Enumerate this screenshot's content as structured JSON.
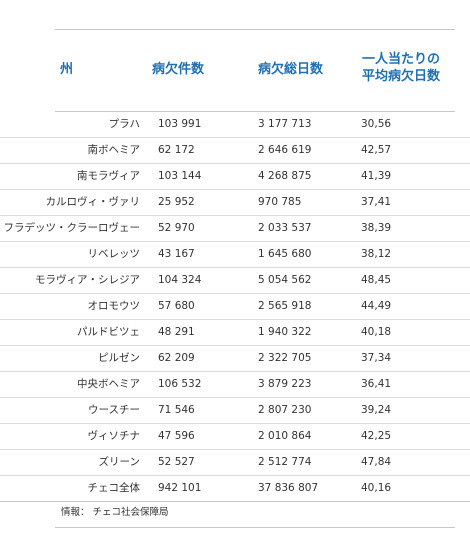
{
  "table": {
    "headers": {
      "state": "州",
      "cases": "病欠件数",
      "days": "病欠総日数",
      "avg_line1": "一人当たりの",
      "avg_line2": "平均病欠日数"
    },
    "rows": [
      {
        "state": "プラハ",
        "cases": "103 991",
        "days": "3 177 713",
        "avg": "30,56"
      },
      {
        "state": "南ボヘミア",
        "cases": "62 172",
        "days": "2 646 619",
        "avg": "42,57"
      },
      {
        "state": "南モラヴィア",
        "cases": "103 144",
        "days": "4 268 875",
        "avg": "41,39"
      },
      {
        "state": "カルロヴィ・ヴァリ",
        "cases": "25 952",
        "days": "970 785",
        "avg": "37,41"
      },
      {
        "state": "フラデッツ・クラーロヴェー",
        "cases": "52 970",
        "days": "2 033 537",
        "avg": "38,39"
      },
      {
        "state": "リベレッツ",
        "cases": "43 167",
        "days": "1 645 680",
        "avg": "38,12"
      },
      {
        "state": "モラヴィア・シレジア",
        "cases": "104 324",
        "days": "5 054 562",
        "avg": "48,45"
      },
      {
        "state": "オロモウツ",
        "cases": "57 680",
        "days": "2 565 918",
        "avg": "44,49"
      },
      {
        "state": "パルドビツェ",
        "cases": "48 291",
        "days": "1 940 322",
        "avg": "40,18"
      },
      {
        "state": "ピルゼン",
        "cases": "62 209",
        "days": "2 322 705",
        "avg": "37,34"
      },
      {
        "state": "中央ボヘミア",
        "cases": "106 532",
        "days": "3 879 223",
        "avg": "36,41"
      },
      {
        "state": "ウースチー",
        "cases": "71 546",
        "days": "2 807 230",
        "avg": "39,24"
      },
      {
        "state": "ヴィソチナ",
        "cases": "47 596",
        "days": "2 010 864",
        "avg": "42,25"
      },
      {
        "state": "ズリーン",
        "cases": "52 527",
        "days": "2 512 774",
        "avg": "47,84"
      },
      {
        "state": "チェコ全体",
        "cases": "942 101",
        "days": "37 836 807",
        "avg": "40,16"
      }
    ],
    "source": "情報： チェコ社会保障局"
  }
}
